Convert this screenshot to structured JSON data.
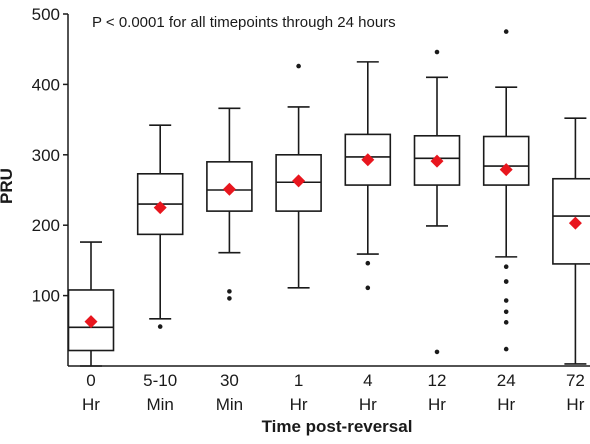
{
  "chart_data": {
    "type": "boxplot",
    "annotation": "P < 0.0001 for all timepoints through 24 hours",
    "xlabel": "Time post-reversal",
    "ylabel": "PRU",
    "ylim": [
      0,
      500
    ],
    "yticks": [
      100,
      200,
      300,
      400,
      500
    ],
    "grid": false,
    "mean_marker_color": "#e8161e",
    "categories": [
      {
        "label_top": "0",
        "label_bottom": "Hr",
        "whisker_low": 0,
        "q1": 22,
        "median": 55,
        "q3": 108,
        "whisker_high": 176,
        "mean": 63,
        "outliers": []
      },
      {
        "label_top": "5-10",
        "label_bottom": "Min",
        "whisker_low": 67,
        "q1": 187,
        "median": 230,
        "q3": 273,
        "whisker_high": 342,
        "mean": 225,
        "outliers": [
          56
        ]
      },
      {
        "label_top": "30",
        "label_bottom": "Min",
        "whisker_low": 161,
        "q1": 220,
        "median": 250,
        "q3": 290,
        "whisker_high": 366,
        "mean": 251,
        "outliers": [
          106,
          96
        ]
      },
      {
        "label_top": "1",
        "label_bottom": "Hr",
        "whisker_low": 111,
        "q1": 220,
        "median": 261,
        "q3": 300,
        "whisker_high": 368,
        "mean": 263,
        "outliers": [
          426
        ]
      },
      {
        "label_top": "4",
        "label_bottom": "Hr",
        "whisker_low": 159,
        "q1": 257,
        "median": 297,
        "q3": 329,
        "whisker_high": 432,
        "mean": 293,
        "outliers": [
          146,
          111
        ]
      },
      {
        "label_top": "12",
        "label_bottom": "Hr",
        "whisker_low": 199,
        "q1": 257,
        "median": 295,
        "q3": 327,
        "whisker_high": 410,
        "mean": 291,
        "outliers": [
          446,
          20
        ]
      },
      {
        "label_top": "24",
        "label_bottom": "Hr",
        "whisker_low": 155,
        "q1": 257,
        "median": 284,
        "q3": 326,
        "whisker_high": 396,
        "mean": 279,
        "outliers": [
          475,
          141,
          120,
          120,
          93,
          77,
          62,
          24
        ]
      },
      {
        "label_top": "72",
        "label_bottom": "Hr",
        "whisker_low": 3,
        "q1": 145,
        "median": 213,
        "q3": 266,
        "whisker_high": 352,
        "mean": 203,
        "outliers": []
      }
    ]
  }
}
